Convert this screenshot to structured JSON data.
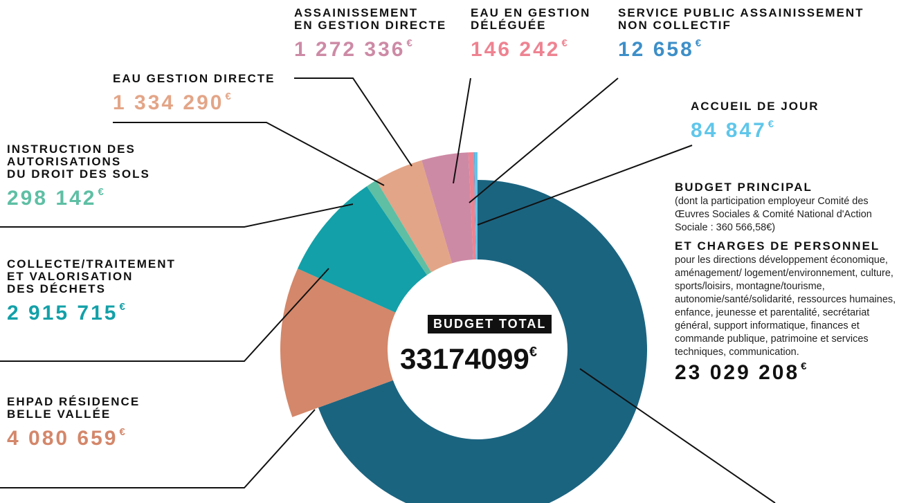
{
  "chart_data": {
    "type": "donut",
    "center_title": "BUDGET TOTAL",
    "total": 33174099,
    "currency": "€",
    "categories": [
      "BUDGET PRINCIPAL",
      "EHPAD RÉSIDENCE\nBELLE VALLÉE",
      "COLLECTE/TRAITEMENT\nET VALORISATION\nDES DÉCHETS",
      "INSTRUCTION DES\nAUTORISATIONS\nDU DROIT DES SOLS",
      "EAU GESTION DIRECTE",
      "ASSAINISSEMENT\nEN GESTION DIRECTE",
      "EAU EN GESTION\nDÉLÉGUÉE",
      "SERVICE PUBLIC ASSAINISSEMENT\nNON COLLECTIF",
      "ACCUEIL DE JOUR"
    ],
    "values": [
      23029208,
      4080659,
      2915715,
      298142,
      1334290,
      1272336,
      146242,
      12658,
      84847
    ],
    "value_labels": [
      "23 029 208",
      "4 080 659",
      "2 915 715",
      "298 142",
      "1 334 290",
      "1 272 336",
      "146 242",
      "12 658",
      "84 847"
    ],
    "colors": [
      "#1b6480",
      "#d4876a",
      "#13a0a8",
      "#5ebfa4",
      "#e3a587",
      "#cd8aa5",
      "#ee8391",
      "#3d8fc8",
      "#5fc6ea"
    ],
    "annotations": [
      "(dont la participation employeur Comité des Œuvres Sociales & Comité National d'Action Sociale : 360 566,58€)",
      "ET CHARGES DE PERSONNEL",
      "pour les directions développement économique, aménagement/ logement/environnement, culture, sports/loisirs, montagne/tourisme, autonomie/santé/solidarité, ressources humaines, enfance, jeunesse et parentalité, secrétariat général, support informatique, finances et commande publique, patrimoine et services techniques, communication."
    ]
  }
}
